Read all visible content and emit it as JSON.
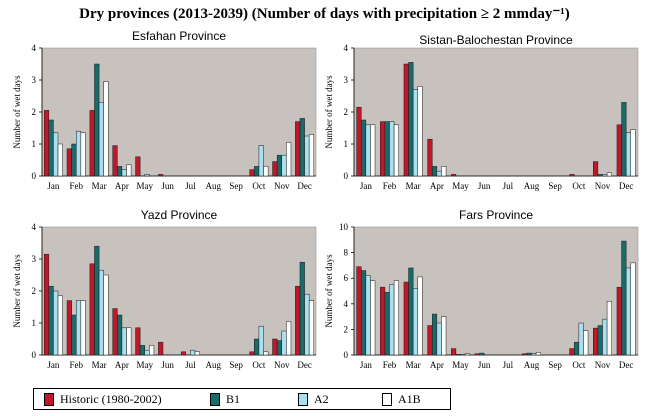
{
  "title": "Dry provinces (2013-2039) (Number of days with precipitation ≥ 2 mmday⁻¹)",
  "series_colors": {
    "Historic (1980-2002)": "#c0182a",
    "B1": "#1a6a6a",
    "A2": "#a9dfef",
    "A1B": "#ffffff"
  },
  "legend": [
    "Historic (1980-2002)",
    "B1",
    "A2",
    "A1B"
  ],
  "chart_data": [
    {
      "type": "bar",
      "title": "Esfahan Province",
      "ylabel": "Number of wet days",
      "ylim": [
        0,
        4
      ],
      "yticks": [
        "0",
        "1",
        "2",
        "3",
        "4"
      ],
      "categories": [
        "Jan",
        "Feb",
        "Mar",
        "Apr",
        "May",
        "Jun",
        "Jul",
        "Aug",
        "Sep",
        "Oct",
        "Nov",
        "Dec"
      ],
      "series": [
        {
          "name": "Historic (1980-2002)",
          "values": [
            2.05,
            0.85,
            2.05,
            0.95,
            0.6,
            0.05,
            0,
            0,
            0,
            0.2,
            0.45,
            1.7
          ]
        },
        {
          "name": "B1",
          "values": [
            1.75,
            1.0,
            3.5,
            0.3,
            0.0,
            0.0,
            0,
            0,
            0,
            0.3,
            0.65,
            1.8
          ]
        },
        {
          "name": "A2",
          "values": [
            1.35,
            1.4,
            2.3,
            0.2,
            0.05,
            0.0,
            0,
            0,
            0,
            0.95,
            0.65,
            1.25
          ]
        },
        {
          "name": "A1B",
          "values": [
            1.0,
            1.35,
            2.95,
            0.35,
            0.0,
            0.0,
            0,
            0,
            0,
            0.3,
            1.05,
            1.3
          ]
        }
      ]
    },
    {
      "type": "bar",
      "title": "Sistan-Balochestan Province",
      "ylabel": "Number of wet days",
      "ylim": [
        0,
        4
      ],
      "yticks": [
        "0",
        "1",
        "2",
        "3",
        "4"
      ],
      "categories": [
        "Jan",
        "Feb",
        "Mar",
        "Apr",
        "May",
        "Jun",
        "Jul",
        "Aug",
        "Sep",
        "Oct",
        "Nov",
        "Dec"
      ],
      "series": [
        {
          "name": "Historic (1980-2002)",
          "values": [
            2.15,
            1.7,
            3.5,
            1.15,
            0.05,
            0,
            0,
            0,
            0,
            0.05,
            0.45,
            1.6
          ]
        },
        {
          "name": "B1",
          "values": [
            1.75,
            1.7,
            3.55,
            0.3,
            0.0,
            0,
            0,
            0,
            0,
            0.0,
            0.05,
            2.3
          ]
        },
        {
          "name": "A2",
          "values": [
            1.6,
            1.7,
            2.7,
            0.15,
            0.0,
            0,
            0,
            0,
            0,
            0.0,
            0.05,
            1.35
          ]
        },
        {
          "name": "A1B",
          "values": [
            1.6,
            1.6,
            2.8,
            0.3,
            0.0,
            0,
            0,
            0,
            0,
            0.0,
            0.1,
            1.45
          ]
        }
      ]
    },
    {
      "type": "bar",
      "title": "Yazd Province",
      "ylabel": "Number of wet days",
      "ylim": [
        0,
        4
      ],
      "yticks": [
        "0",
        "1",
        "2",
        "3",
        "4"
      ],
      "categories": [
        "Jan",
        "Feb",
        "Mar",
        "Apr",
        "May",
        "Jun",
        "Jul",
        "Aug",
        "Sep",
        "Oct",
        "Nov",
        "Dec"
      ],
      "series": [
        {
          "name": "Historic (1980-2002)",
          "values": [
            3.15,
            1.7,
            2.85,
            1.45,
            0.85,
            0.4,
            0.1,
            0,
            0,
            0.1,
            0.5,
            2.15
          ]
        },
        {
          "name": "B1",
          "values": [
            2.15,
            1.25,
            3.4,
            1.25,
            0.3,
            0.0,
            0.0,
            0,
            0,
            0.5,
            0.45,
            2.9
          ]
        },
        {
          "name": "A2",
          "values": [
            2.0,
            1.7,
            2.65,
            0.85,
            0.15,
            0.0,
            0.15,
            0,
            0,
            0.9,
            0.75,
            1.9
          ]
        },
        {
          "name": "A1B",
          "values": [
            1.85,
            1.7,
            2.5,
            0.85,
            0.3,
            0.0,
            0.1,
            0,
            0,
            0.1,
            1.05,
            1.7
          ]
        }
      ]
    },
    {
      "type": "bar",
      "title": "Fars Province",
      "ylabel": "Number of wet days",
      "ylim": [
        0,
        10
      ],
      "yticks": [
        "0",
        "2",
        "4",
        "6",
        "8",
        "10"
      ],
      "categories": [
        "Jan",
        "Feb",
        "Mar",
        "Apr",
        "May",
        "Jun",
        "Jul",
        "Aug",
        "Sep",
        "Oct",
        "Nov",
        "Dec"
      ],
      "series": [
        {
          "name": "Historic (1980-2002)",
          "values": [
            6.9,
            5.3,
            5.7,
            2.3,
            0.5,
            0.1,
            0,
            0.1,
            0,
            0.5,
            2.1,
            5.3
          ]
        },
        {
          "name": "B1",
          "values": [
            6.6,
            4.9,
            6.8,
            3.2,
            0.05,
            0.15,
            0,
            0.15,
            0,
            1.0,
            2.3,
            8.9
          ]
        },
        {
          "name": "A2",
          "values": [
            6.2,
            5.5,
            5.2,
            2.5,
            0.05,
            0.0,
            0,
            0.1,
            0,
            2.5,
            2.8,
            6.8
          ]
        },
        {
          "name": "A1B",
          "values": [
            5.8,
            5.8,
            6.1,
            3.0,
            0.1,
            0.0,
            0,
            0.2,
            0,
            1.9,
            4.2,
            7.2
          ]
        }
      ]
    }
  ]
}
